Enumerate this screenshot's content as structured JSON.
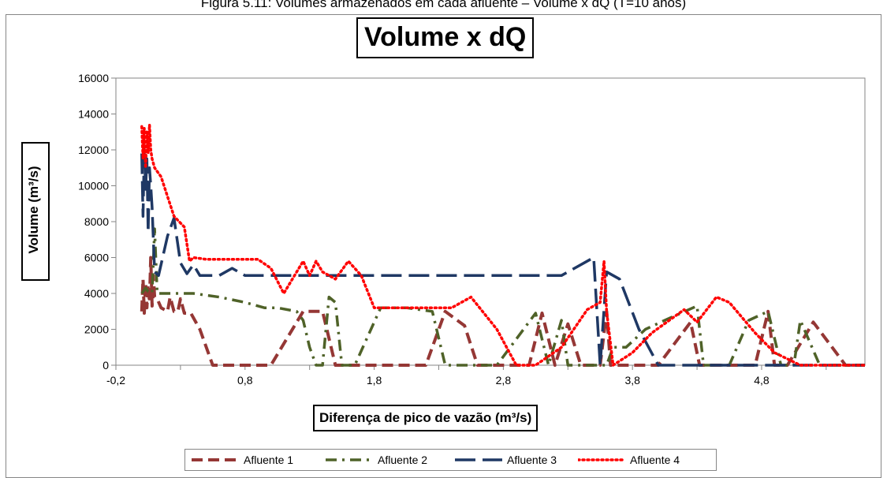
{
  "caption": "Figura 5.11: Volumes armazenados em cada afluente – Volume x dQ (T=10 anos)",
  "chart_data": {
    "type": "line",
    "title": "Volume x dQ",
    "xlabel": "Diferença de pico de vazão (m³/s)",
    "ylabel": "Volume (m³/s)",
    "xlim": [
      -0.2,
      5.6
    ],
    "ylim": [
      0,
      16000
    ],
    "x_ticks": [
      "-0,2",
      "0,8",
      "1,8",
      "2,8",
      "3,8",
      "4,8"
    ],
    "y_ticks": [
      "0",
      "2000",
      "4000",
      "6000",
      "8000",
      "10000",
      "12000",
      "14000",
      "16000"
    ],
    "grid": false,
    "legend_position": "bottom",
    "series": [
      {
        "name": "Afluente 1",
        "color": "#953735",
        "dash": "dashed",
        "points": [
          [
            0.0,
            3000
          ],
          [
            0.01,
            4800
          ],
          [
            0.02,
            2900
          ],
          [
            0.03,
            4600
          ],
          [
            0.04,
            3200
          ],
          [
            0.05,
            4500
          ],
          [
            0.06,
            3500
          ],
          [
            0.07,
            6000
          ],
          [
            0.08,
            3300
          ],
          [
            0.09,
            5000
          ],
          [
            0.1,
            3800
          ],
          [
            0.12,
            3700
          ],
          [
            0.15,
            3200
          ],
          [
            0.2,
            3000
          ],
          [
            0.22,
            3800
          ],
          [
            0.25,
            3000
          ],
          [
            0.28,
            3000
          ],
          [
            0.3,
            3700
          ],
          [
            0.33,
            2900
          ],
          [
            0.38,
            2900
          ],
          [
            0.45,
            2000
          ],
          [
            0.55,
            0
          ],
          [
            0.7,
            0
          ],
          [
            0.9,
            0
          ],
          [
            1.0,
            0
          ],
          [
            1.25,
            3000
          ],
          [
            1.4,
            3000
          ],
          [
            1.5,
            0
          ],
          [
            1.55,
            0
          ],
          [
            2.0,
            0
          ],
          [
            2.2,
            0
          ],
          [
            2.35,
            3000
          ],
          [
            2.5,
            2200
          ],
          [
            2.6,
            0
          ],
          [
            2.8,
            0
          ],
          [
            3.0,
            0
          ],
          [
            3.1,
            2900
          ],
          [
            3.2,
            0
          ],
          [
            3.3,
            2300
          ],
          [
            3.4,
            0
          ],
          [
            3.5,
            0
          ],
          [
            3.55,
            0
          ],
          [
            3.6,
            3000
          ],
          [
            3.63,
            0
          ],
          [
            3.9,
            0
          ],
          [
            4.0,
            0
          ],
          [
            4.25,
            2400
          ],
          [
            4.32,
            0
          ],
          [
            4.5,
            0
          ],
          [
            4.6,
            0
          ],
          [
            4.75,
            0
          ],
          [
            4.85,
            3000
          ],
          [
            4.9,
            0
          ],
          [
            5.0,
            0
          ],
          [
            5.2,
            2400
          ],
          [
            5.45,
            0
          ],
          [
            5.6,
            0
          ]
        ]
      },
      {
        "name": "Afluente 2",
        "color": "#4f6228",
        "dash": "dashdot",
        "points": [
          [
            0.0,
            4000
          ],
          [
            0.03,
            4300
          ],
          [
            0.05,
            4100
          ],
          [
            0.08,
            4000
          ],
          [
            0.1,
            7600
          ],
          [
            0.12,
            4000
          ],
          [
            0.2,
            4000
          ],
          [
            0.4,
            4000
          ],
          [
            0.6,
            3800
          ],
          [
            0.8,
            3500
          ],
          [
            0.95,
            3200
          ],
          [
            1.05,
            3200
          ],
          [
            1.2,
            3000
          ],
          [
            1.25,
            2500
          ],
          [
            1.3,
            1000
          ],
          [
            1.35,
            0
          ],
          [
            1.4,
            0
          ],
          [
            1.45,
            3800
          ],
          [
            1.5,
            3500
          ],
          [
            1.55,
            0
          ],
          [
            1.65,
            0
          ],
          [
            1.85,
            3200
          ],
          [
            2.05,
            3200
          ],
          [
            2.25,
            3000
          ],
          [
            2.35,
            0
          ],
          [
            2.6,
            0
          ],
          [
            2.75,
            0
          ],
          [
            3.05,
            2900
          ],
          [
            3.15,
            0
          ],
          [
            3.25,
            2500
          ],
          [
            3.3,
            0
          ],
          [
            3.5,
            0
          ],
          [
            3.6,
            0
          ],
          [
            3.65,
            1000
          ],
          [
            3.75,
            1000
          ],
          [
            3.9,
            2000
          ],
          [
            4.05,
            2500
          ],
          [
            4.3,
            3300
          ],
          [
            4.35,
            0
          ],
          [
            4.55,
            0
          ],
          [
            4.7,
            2500
          ],
          [
            4.85,
            3000
          ],
          [
            4.95,
            0
          ],
          [
            5.05,
            0
          ],
          [
            5.1,
            2500
          ],
          [
            5.25,
            0
          ],
          [
            5.6,
            0
          ]
        ]
      },
      {
        "name": "Afluente 3",
        "color": "#1f3864",
        "dash": "longdash",
        "points": [
          [
            0.0,
            11800
          ],
          [
            0.01,
            8300
          ],
          [
            0.02,
            12000
          ],
          [
            0.03,
            9800
          ],
          [
            0.04,
            11500
          ],
          [
            0.05,
            7400
          ],
          [
            0.06,
            11000
          ],
          [
            0.07,
            10000
          ],
          [
            0.08,
            8800
          ],
          [
            0.1,
            5200
          ],
          [
            0.13,
            5000
          ],
          [
            0.2,
            7200
          ],
          [
            0.25,
            8200
          ],
          [
            0.3,
            5700
          ],
          [
            0.35,
            5100
          ],
          [
            0.4,
            5600
          ],
          [
            0.45,
            5000
          ],
          [
            0.6,
            5000
          ],
          [
            0.7,
            5400
          ],
          [
            0.8,
            5000
          ],
          [
            1.2,
            5000
          ],
          [
            1.5,
            5000
          ],
          [
            2.0,
            5000
          ],
          [
            2.5,
            5000
          ],
          [
            3.0,
            5000
          ],
          [
            3.25,
            5000
          ],
          [
            3.5,
            6000
          ],
          [
            3.55,
            0
          ],
          [
            3.6,
            5200
          ],
          [
            3.7,
            4800
          ],
          [
            3.85,
            2000
          ],
          [
            4.0,
            0
          ],
          [
            4.3,
            0
          ],
          [
            4.8,
            0
          ],
          [
            5.3,
            0
          ],
          [
            5.6,
            0
          ]
        ]
      },
      {
        "name": "Afluente 4",
        "color": "#ff0000",
        "dash": "dotted",
        "points": [
          [
            0.0,
            13300
          ],
          [
            0.01,
            11500
          ],
          [
            0.02,
            13200
          ],
          [
            0.03,
            11000
          ],
          [
            0.04,
            13000
          ],
          [
            0.05,
            11800
          ],
          [
            0.06,
            13400
          ],
          [
            0.07,
            12000
          ],
          [
            0.08,
            11500
          ],
          [
            0.1,
            11000
          ],
          [
            0.15,
            10500
          ],
          [
            0.25,
            8300
          ],
          [
            0.33,
            7700
          ],
          [
            0.37,
            5800
          ],
          [
            0.4,
            6000
          ],
          [
            0.5,
            5900
          ],
          [
            0.7,
            5900
          ],
          [
            0.9,
            5900
          ],
          [
            1.0,
            5400
          ],
          [
            1.1,
            4000
          ],
          [
            1.2,
            5200
          ],
          [
            1.25,
            5800
          ],
          [
            1.3,
            5000
          ],
          [
            1.35,
            5800
          ],
          [
            1.4,
            5200
          ],
          [
            1.5,
            4800
          ],
          [
            1.6,
            5800
          ],
          [
            1.7,
            5000
          ],
          [
            1.8,
            3200
          ],
          [
            2.0,
            3200
          ],
          [
            2.2,
            3200
          ],
          [
            2.4,
            3200
          ],
          [
            2.55,
            3800
          ],
          [
            2.75,
            2000
          ],
          [
            2.9,
            0
          ],
          [
            3.05,
            0
          ],
          [
            3.25,
            1000
          ],
          [
            3.45,
            3100
          ],
          [
            3.55,
            3500
          ],
          [
            3.58,
            5800
          ],
          [
            3.6,
            3000
          ],
          [
            3.65,
            0
          ],
          [
            3.8,
            700
          ],
          [
            3.95,
            1800
          ],
          [
            4.2,
            3100
          ],
          [
            4.3,
            2400
          ],
          [
            4.45,
            3800
          ],
          [
            4.55,
            3500
          ],
          [
            4.75,
            1800
          ],
          [
            4.9,
            700
          ],
          [
            5.1,
            0
          ],
          [
            5.35,
            0
          ],
          [
            5.6,
            0
          ]
        ]
      }
    ]
  }
}
